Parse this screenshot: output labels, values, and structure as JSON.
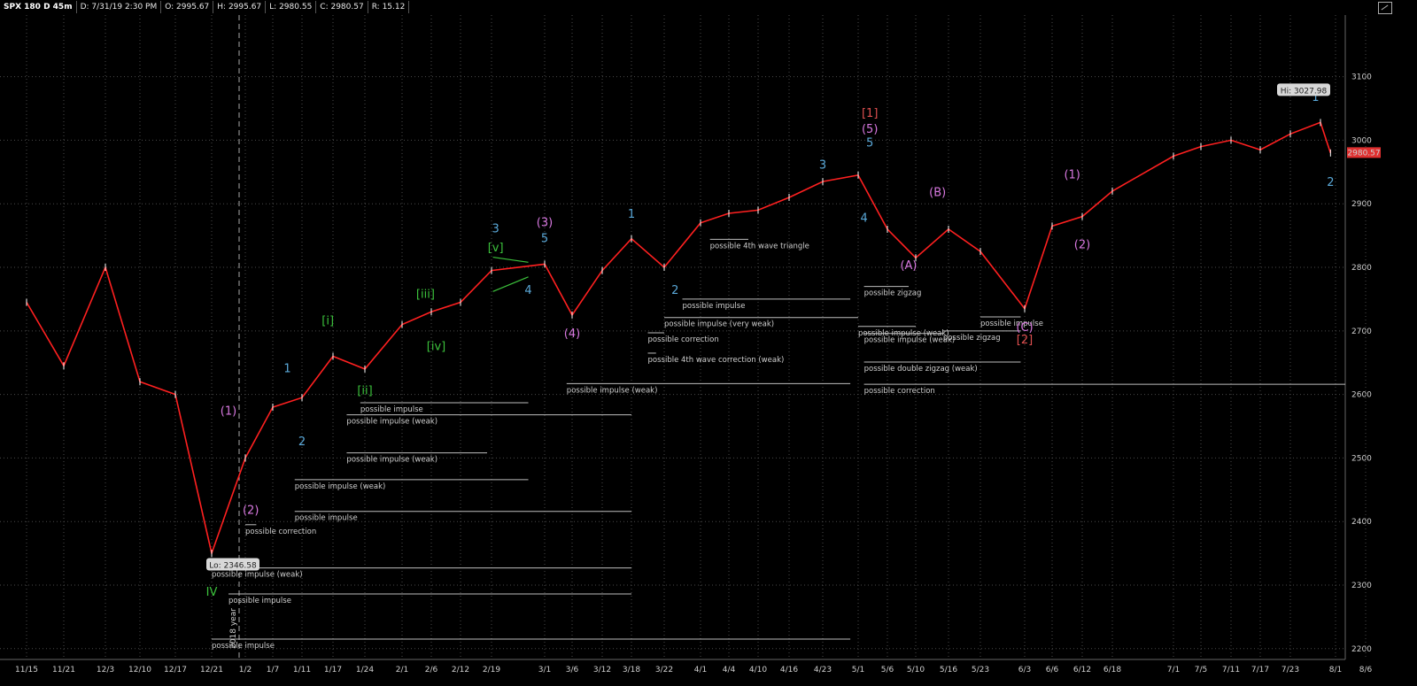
{
  "header": {
    "symbol": "SPX 180 D 45m",
    "date": "D: 7/31/19 2:30 PM",
    "open": "O: 2995.67",
    "high": "H: 2995.67",
    "low": "L: 2980.55",
    "close": "C: 2980.57",
    "range": "R: 15.12"
  },
  "colors": {
    "background": "#000000",
    "candle": "#ff2020",
    "grid": "#4a4a4a",
    "wave_blue": "#5aa8d8",
    "wave_pink": "#d878e0",
    "wave_green": "#3cc23c",
    "wave_red": "#e05050",
    "price_tag": "#e03030"
  },
  "chart_data": {
    "type": "line",
    "title": "",
    "price_last": "2980.57",
    "y_ticks": [
      "3100",
      "3000",
      "2900",
      "2800",
      "2700",
      "2600",
      "2500",
      "2400",
      "2300",
      "2200"
    ],
    "ylim": [
      2183,
      3197
    ],
    "x_ticks": [
      "11/15",
      "11/21",
      "12/3",
      "12/10",
      "12/17",
      "12/21",
      "1/2",
      "1/7",
      "1/11",
      "1/17",
      "1/24",
      "2/1",
      "2/6",
      "2/12",
      "2/19",
      "3/1",
      "3/6",
      "3/12",
      "3/18",
      "3/22",
      "4/1",
      "4/4",
      "4/10",
      "4/16",
      "4/23",
      "5/1",
      "5/6",
      "5/10",
      "5/16",
      "5/23",
      "6/3",
      "6/6",
      "6/12",
      "6/18",
      "7/1",
      "7/5",
      "7/11",
      "7/17",
      "7/23",
      "8/1",
      "8/6"
    ],
    "year_divider_label": "2018 year",
    "series": [
      {
        "values": [
          [
            "11/15",
            2745
          ],
          [
            "11/21",
            2645
          ],
          [
            "12/3",
            2800
          ],
          [
            "12/10",
            2620
          ],
          [
            "12/17",
            2600
          ],
          [
            "12/21",
            2350
          ],
          [
            "1/2",
            2500
          ],
          [
            "1/7",
            2580
          ],
          [
            "1/11",
            2595
          ],
          [
            "1/17",
            2660
          ],
          [
            "1/24",
            2640
          ],
          [
            "2/1",
            2710
          ],
          [
            "2/6",
            2730
          ],
          [
            "2/12",
            2745
          ],
          [
            "2/19",
            2795
          ],
          [
            "3/1",
            2805
          ],
          [
            "3/6",
            2725
          ],
          [
            "3/12",
            2795
          ],
          [
            "3/18",
            2845
          ],
          [
            "3/22",
            2800
          ],
          [
            "4/1",
            2870
          ],
          [
            "4/4",
            2885
          ],
          [
            "4/10",
            2890
          ],
          [
            "4/16",
            2910
          ],
          [
            "4/23",
            2935
          ],
          [
            "5/1",
            2945
          ],
          [
            "5/6",
            2860
          ],
          [
            "5/10",
            2815
          ],
          [
            "5/16",
            2860
          ],
          [
            "5/23",
            2825
          ],
          [
            "6/3",
            2735
          ],
          [
            "6/6",
            2865
          ],
          [
            "6/12",
            2880
          ],
          [
            "6/18",
            2920
          ],
          [
            "7/1",
            2975
          ],
          [
            "7/5",
            2990
          ],
          [
            "7/11",
            3000
          ],
          [
            "7/17",
            2985
          ],
          [
            "7/23",
            3010
          ],
          [
            "7/29",
            3028
          ],
          [
            "7/31",
            2980
          ]
        ]
      }
    ],
    "callouts": [
      {
        "text": "Hi: 3027.98",
        "value": 3027.98
      },
      {
        "text": "Lo: 2346.58",
        "value": 2346.58
      }
    ],
    "wave_labels": [
      {
        "text": "(1)",
        "color": "pink",
        "date": "12/27",
        "price": 2568
      },
      {
        "text": "(2)",
        "color": "pink",
        "date": "1/3",
        "price": 2412
      },
      {
        "text": "IV",
        "color": "green",
        "date": "12/21",
        "price": 2283
      },
      {
        "text": "1",
        "color": "blue",
        "date": "1/9",
        "price": 2635
      },
      {
        "text": "2",
        "color": "blue",
        "date": "1/11",
        "price": 2520
      },
      {
        "text": "[i]",
        "color": "green",
        "date": "1/16",
        "price": 2710
      },
      {
        "text": "[ii]",
        "color": "green",
        "date": "1/24",
        "price": 2600
      },
      {
        "text": "[iii]",
        "color": "green",
        "date": "2/5",
        "price": 2752
      },
      {
        "text": "[iv]",
        "color": "green",
        "date": "2/7",
        "price": 2670
      },
      {
        "text": "3",
        "color": "blue",
        "date": "2/20",
        "price": 2855
      },
      {
        "text": "[v]",
        "color": "green",
        "date": "2/20",
        "price": 2825
      },
      {
        "text": "(3)",
        "color": "pink",
        "date": "3/1",
        "price": 2865
      },
      {
        "text": "5",
        "color": "blue",
        "date": "3/1",
        "price": 2840
      },
      {
        "text": "4",
        "color": "blue",
        "date": "2/28",
        "price": 2758
      },
      {
        "text": "(4)",
        "color": "pink",
        "date": "3/6",
        "price": 2690
      },
      {
        "text": "1",
        "color": "blue",
        "date": "3/18",
        "price": 2878
      },
      {
        "text": "2",
        "color": "blue",
        "date": "3/25",
        "price": 2758
      },
      {
        "text": "3",
        "color": "blue",
        "date": "4/23",
        "price": 2955
      },
      {
        "text": "[1]",
        "color": "red",
        "date": "5/3",
        "price": 3037
      },
      {
        "text": "(5)",
        "color": "pink",
        "date": "5/3",
        "price": 3012
      },
      {
        "text": "5",
        "color": "blue",
        "date": "5/3",
        "price": 2990
      },
      {
        "text": "4",
        "color": "blue",
        "date": "5/2",
        "price": 2872
      },
      {
        "text": "(A)",
        "color": "pink",
        "date": "5/9",
        "price": 2797
      },
      {
        "text": "(B)",
        "color": "pink",
        "date": "5/14",
        "price": 2912
      },
      {
        "text": "(C)",
        "color": "pink",
        "date": "6/3",
        "price": 2700
      },
      {
        "text": "[2]",
        "color": "red",
        "date": "6/3",
        "price": 2680
      },
      {
        "text": "(1)",
        "color": "pink",
        "date": "6/10",
        "price": 2940
      },
      {
        "text": "(2)",
        "color": "pink",
        "date": "6/12",
        "price": 2830
      },
      {
        "text": "1",
        "color": "blue",
        "date": "7/28",
        "price": 3062
      },
      {
        "text": "2",
        "color": "blue",
        "date": "7/31",
        "price": 2928
      }
    ],
    "annotations": [
      {
        "text": "possible correction",
        "from": "1/2",
        "to": "1/4",
        "price": 2395
      },
      {
        "text": "possible impulse (weak)",
        "from": "12/21",
        "to": "3/18",
        "price": 2327
      },
      {
        "text": "possible impulse",
        "from": "12/27",
        "to": "3/18",
        "price": 2286
      },
      {
        "text": "possible impulse",
        "from": "12/21",
        "to": "4/30",
        "price": 2215
      },
      {
        "text": "possible impulse",
        "from": "1/10",
        "to": "3/18",
        "price": 2416
      },
      {
        "text": "possible impulse (weak)",
        "from": "1/10",
        "to": "2/28",
        "price": 2466
      },
      {
        "text": "possible impulse (weak)",
        "from": "1/20",
        "to": "2/18",
        "price": 2508
      },
      {
        "text": "possible impulse (weak)",
        "from": "1/20",
        "to": "3/18",
        "price": 2568
      },
      {
        "text": "possible impulse",
        "from": "1/23",
        "to": "2/28",
        "price": 2587
      },
      {
        "text": "possible impulse (weak)",
        "from": "3/5",
        "to": "4/30",
        "price": 2617
      },
      {
        "text": "possible 4th wave correction (weak)",
        "from": "3/20",
        "to": "3/21",
        "price": 2665
      },
      {
        "text": "possible correction",
        "from": "3/20",
        "to": "3/22",
        "price": 2697
      },
      {
        "text": "possible impulse (very weak)",
        "from": "3/22",
        "to": "5/1",
        "price": 2721
      },
      {
        "text": "possible impulse",
        "from": "3/27",
        "to": "4/30",
        "price": 2750
      },
      {
        "text": "possible 4th wave triangle",
        "from": "4/2",
        "to": "4/8",
        "price": 2844
      },
      {
        "text": "possible zigzag",
        "from": "5/2",
        "to": "5/9",
        "price": 2770
      },
      {
        "text": "possible impulse (weak)",
        "from": "5/1",
        "to": "5/10",
        "price": 2707
      },
      {
        "text": "possible impulse (weak)",
        "from": "5/2",
        "to": "5/15",
        "price": 2696
      },
      {
        "text": "possible zigzag",
        "from": "5/15",
        "to": "6/2",
        "price": 2700
      },
      {
        "text": "possible impulse",
        "from": "5/23",
        "to": "6/2",
        "price": 2722
      },
      {
        "text": "possible double zigzag (weak)",
        "from": "5/2",
        "to": "6/2",
        "price": 2651
      },
      {
        "text": "possible correction",
        "from": "5/2",
        "to": "8/6",
        "price": 2616
      }
    ]
  }
}
